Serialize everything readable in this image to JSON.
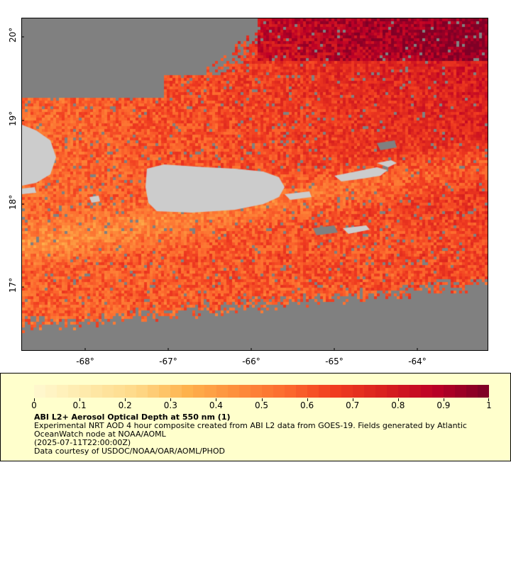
{
  "map": {
    "region": "Puerto Rico and Virgin Islands",
    "lat_labels": [
      "20°",
      "19°",
      "18°",
      "17°"
    ],
    "lon_labels": [
      "-68°",
      "-67°",
      "-66°",
      "-65°",
      "-64°"
    ],
    "lat_range": [
      16.3,
      20.2
    ],
    "lon_range": [
      -68.75,
      -63.1
    ],
    "colors": {
      "no_data": "#808080",
      "land": "#cccccc",
      "frame": "#000000"
    }
  },
  "legend": {
    "tick_labels": [
      "0",
      "0.1",
      "0.2",
      "0.3",
      "0.4",
      "0.5",
      "0.6",
      "0.7",
      "0.8",
      "0.9",
      "1"
    ],
    "title": "ABI L2+ Aerosol Optical Depth at 550 nm (1)",
    "line1": "Experimental NRT AOD 4 hour composite created from ABI L2 data from GOES-19. Fields generated by Atlantic OceanWatch node at NOAA/AOML",
    "line2": "(2025-07-11T22:00:00Z)",
    "line3": "Data courtesy of USDOC/NOAA/OAR/AOML/PHOD",
    "background": "#ffffcc",
    "colormap": [
      "#fff7cc",
      "#fee9a8",
      "#fed887",
      "#feb24c",
      "#fd8d3c",
      "#fc6b2e",
      "#f03b20",
      "#d8201e",
      "#bd0026",
      "#800026"
    ]
  }
}
